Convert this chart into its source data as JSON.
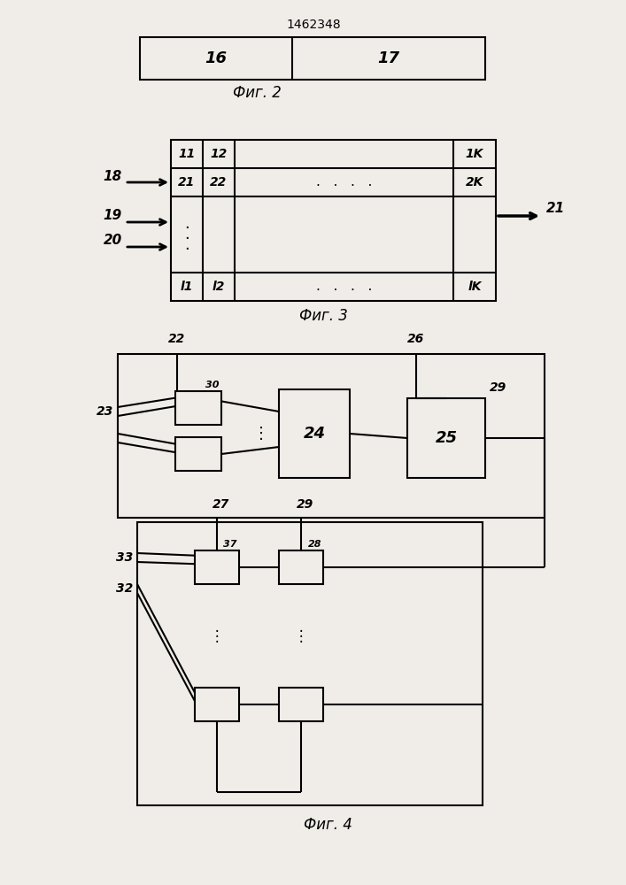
{
  "title": "1462348",
  "fig2_label": "Фиг. 2",
  "fig3_label": "Фиг. 3",
  "fig4_label": "Фиг. 4",
  "bg_color": "#f0ede8",
  "line_color": "#000000",
  "text_color": "#000000"
}
